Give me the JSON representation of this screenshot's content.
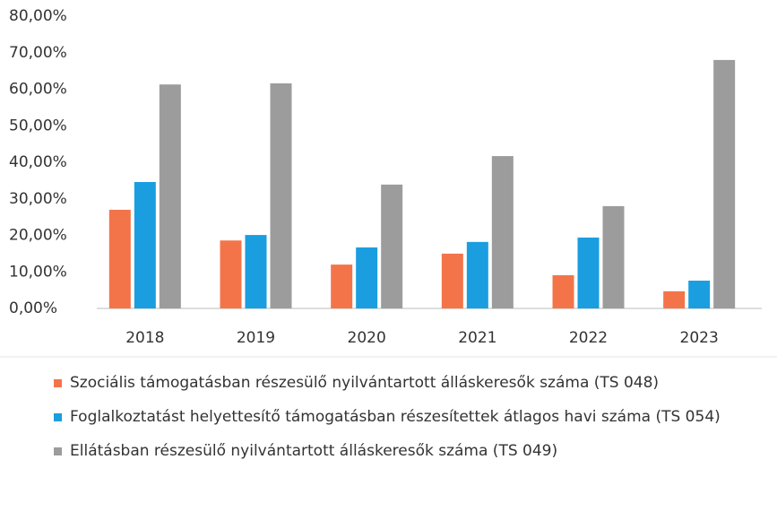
{
  "chart_data": {
    "type": "bar",
    "categories": [
      "2018",
      "2019",
      "2020",
      "2021",
      "2022",
      "2023"
    ],
    "series": [
      {
        "name": "Szociális támogatásban részesülő nyilvántartott álláskeresők száma (TS 048)",
        "color": "#f4744a",
        "values": [
          27.0,
          18.6,
          12.0,
          15.0,
          9.1,
          4.7
        ]
      },
      {
        "name": "Foglalkoztatást helyettesítő támogatásban részesítettek átlagos havi száma (TS 054)",
        "color": "#1a9ee0",
        "values": [
          34.6,
          20.1,
          16.7,
          18.2,
          19.4,
          7.6
        ]
      },
      {
        "name": "Ellátásban részesülő nyilvántartott álláskeresők száma (TS 049)",
        "color": "#9c9c9c",
        "values": [
          61.3,
          61.6,
          33.9,
          41.7,
          28.0,
          68.0
        ]
      }
    ],
    "ylim": [
      0,
      80
    ],
    "yticks": [
      {
        "value": 0,
        "label": "0,00%"
      },
      {
        "value": 10,
        "label": "10,00%"
      },
      {
        "value": 20,
        "label": "20,00%"
      },
      {
        "value": 30,
        "label": "30,00%"
      },
      {
        "value": 40,
        "label": "40,00%"
      },
      {
        "value": 50,
        "label": "50,00%"
      },
      {
        "value": 60,
        "label": "60,00%"
      },
      {
        "value": 70,
        "label": "70,00%"
      },
      {
        "value": 80,
        "label": "80,00%"
      }
    ],
    "grid": false,
    "legend": "bottom"
  }
}
